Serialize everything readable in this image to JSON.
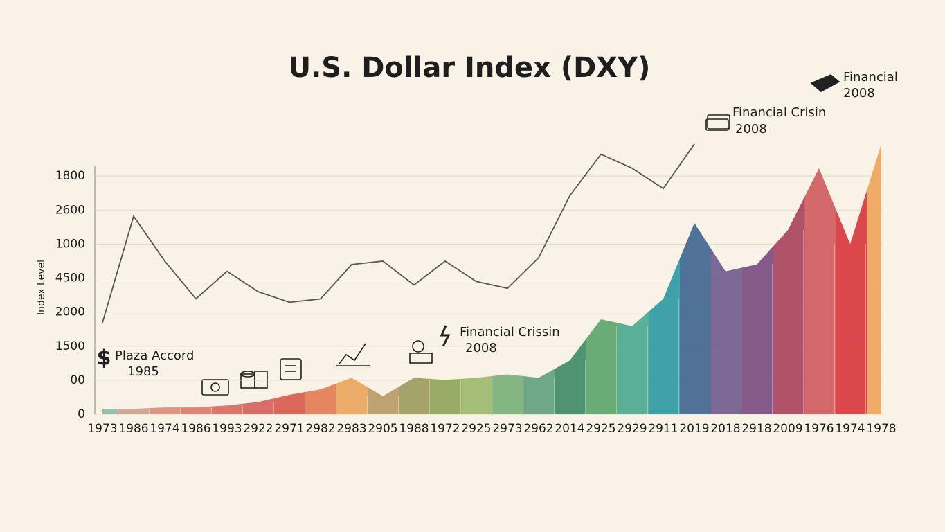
{
  "chart_data": {
    "type": "line-area",
    "title": "U.S. Dollar Index (DXY)",
    "y_label": "Index Level",
    "categories": [
      "1973",
      "1986",
      "1974",
      "1986",
      "1993",
      "2922",
      "2971",
      "2982",
      "2983",
      "2905",
      "1988",
      "1972",
      "2925",
      "2973",
      "2962",
      "2014",
      "2925",
      "2929",
      "2911",
      "2019",
      "2018",
      "2918",
      "2009",
      "1976",
      "1974",
      "1978"
    ],
    "ylim": [
      0,
      8
    ],
    "yticks": [
      0,
      {
        "value": 1,
        "label": "00"
      },
      {
        "value": 2,
        "label": "1500"
      },
      {
        "value": 3,
        "label": "2000"
      },
      {
        "value": 4,
        "label": "4500"
      },
      {
        "value": 5,
        "label": "1000"
      },
      {
        "value": 6,
        "label": "2600"
      },
      {
        "value": 7,
        "label": "1800"
      }
    ],
    "grid": true,
    "series": [
      {
        "kind": "line",
        "color": "#5a5650",
        "values": [
          2.69,
          5.82,
          4.5,
          3.39,
          4.2,
          3.6,
          3.29,
          3.39,
          4.4,
          4.5,
          3.8,
          4.5,
          3.9,
          3.7,
          4.6,
          6.42,
          7.64,
          7.23,
          6.63,
          7.94,
          null,
          null,
          null,
          null,
          null,
          null
        ]
      },
      {
        "kind": "area",
        "colors": [
          "#8fb8a8",
          "#c9a08c",
          "#d98a7a",
          "#d9776a",
          "#d8685e",
          "#d3605a",
          "#d65a4c",
          "#e47a52",
          "#e8a45a",
          "#b59a62",
          "#9a9a5c",
          "#8ea458",
          "#9cbb6a",
          "#78b07a",
          "#5fa07c",
          "#3d8a66",
          "#5aa46a",
          "#4aa88e",
          "#2b98a2",
          "#3d6490",
          "#6e5a8e",
          "#7a4a7e",
          "#a8405c",
          "#d05a5e",
          "#d8363a",
          "#eea45a"
        ],
        "values": [
          0.16,
          0.16,
          0.2,
          0.2,
          0.26,
          0.36,
          0.57,
          0.73,
          1.07,
          0.53,
          1.07,
          1.01,
          1.07,
          1.17,
          1.07,
          1.58,
          2.79,
          2.59,
          3.39,
          5.62,
          4.2,
          4.4,
          5.41,
          7.23,
          5.0,
          7.94
        ]
      }
    ],
    "annotations": [
      {
        "text": "Plaza Accord",
        "year": "1985"
      },
      {
        "text": "Financial Crissin",
        "year": "2008"
      },
      {
        "text": "Financial Crisin",
        "year": "2008"
      },
      {
        "text": "Financial",
        "year": "2008"
      }
    ]
  }
}
